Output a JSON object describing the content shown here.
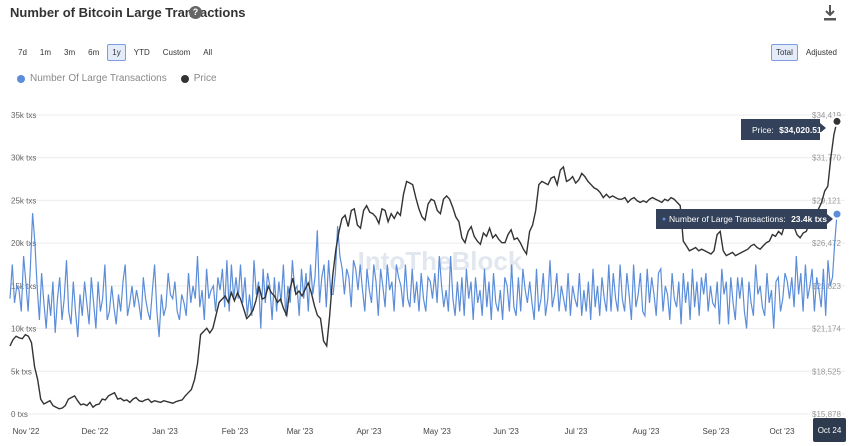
{
  "header": {
    "title": "Number of Bitcoin Large Transactions",
    "help_icon": "question-circle-icon",
    "download_icon": "download-icon"
  },
  "range_tabs": [
    {
      "label": "7d",
      "active": false
    },
    {
      "label": "1m",
      "active": false
    },
    {
      "label": "3m",
      "active": false
    },
    {
      "label": "6m",
      "active": false
    },
    {
      "label": "1y",
      "active": true
    },
    {
      "label": "YTD",
      "active": false
    },
    {
      "label": "Custom",
      "active": false
    },
    {
      "label": "All",
      "active": false
    }
  ],
  "mode_tabs": [
    {
      "label": "Total",
      "active": true
    },
    {
      "label": "Adjusted",
      "active": false
    }
  ],
  "legend": [
    {
      "label": "Number Of Large Transactions",
      "color": "#5b8dd9"
    },
    {
      "label": "Price",
      "color": "#333333"
    }
  ],
  "watermark": "IntoTheBlock",
  "tooltips": {
    "price": {
      "label": "Price:",
      "value": "$34,020.51"
    },
    "transactions": {
      "label": "Number of Large Transactions:",
      "value": "23.4k txs"
    }
  },
  "chart_data": {
    "type": "line",
    "x_ticks": [
      "Nov '22",
      "Dec '22",
      "Jan '23",
      "Feb '23",
      "Mar '23",
      "Apr '23",
      "May '23",
      "Jun '23",
      "Jul '23",
      "Aug '23",
      "Sep '23",
      "Oct '23"
    ],
    "x_end_label": "Oct 24",
    "y_left": {
      "ticks": [
        "0 txs",
        "5k txs",
        "10k txs",
        "15k txs",
        "20k txs",
        "25k txs",
        "30k txs",
        "35k txs"
      ],
      "range": [
        0,
        35000
      ]
    },
    "y_right": {
      "ticks": [
        "$15,878",
        "$18,525",
        "$21,174",
        "$23,823",
        "$26,472",
        "$29,121",
        "$31,770",
        "$34,419"
      ],
      "range": [
        15878,
        34419
      ]
    },
    "series": [
      {
        "name": "Number Of Large Transactions",
        "color": "#5b8dd9",
        "axis": "left",
        "unit": "txs",
        "values": [
          13500,
          17500,
          13000,
          15000,
          14500,
          12000,
          18500,
          15500,
          12000,
          17000,
          23500,
          20000,
          15000,
          11000,
          16500,
          13000,
          10000,
          14000,
          11500,
          15500,
          9500,
          13500,
          16000,
          11000,
          13500,
          18000,
          12000,
          10500,
          15500,
          12000,
          9000,
          14000,
          11500,
          15500,
          13000,
          10500,
          16000,
          13000,
          10000,
          15500,
          12000,
          13500,
          17500,
          11000,
          12000,
          15000,
          12500,
          10500,
          14000,
          12000,
          15500,
          17500,
          11500,
          13000,
          15000,
          12500,
          14500,
          13000,
          11000,
          16000,
          13500,
          12000,
          11000,
          14500,
          17500,
          12000,
          9000,
          14000,
          11500,
          12500,
          16500,
          14000,
          13500,
          15500,
          12000,
          11000,
          14000,
          13000,
          11500,
          16500,
          13000,
          15000,
          13500,
          18500,
          12500,
          14500,
          11000,
          17000,
          13500,
          14500,
          15000,
          12000,
          16000,
          14500,
          17000,
          12500,
          18000,
          12000,
          17500,
          13500,
          16000,
          13500,
          17500,
          13000,
          16000,
          11500,
          14000,
          11500,
          18000,
          14000,
          15500,
          10000,
          17000,
          13000,
          16500,
          15000,
          11000,
          16000,
          12000,
          15500,
          13000,
          17500,
          11500,
          15000,
          13000,
          18000,
          14500,
          15000,
          11500,
          17000,
          13500,
          16500,
          12000,
          17500,
          14000,
          16000,
          21500,
          13000,
          16000,
          17500,
          12500,
          18000,
          14000,
          14000,
          16500,
          22000,
          18500,
          17000,
          14000,
          17000,
          16000,
          12500,
          18000,
          17000,
          14500,
          17500,
          14500,
          12000,
          17000,
          14500,
          13000,
          17500,
          15500,
          11500,
          17000,
          15000,
          12500,
          17500,
          14500,
          15500,
          12000,
          17500,
          16000,
          15000,
          12500,
          17500,
          13500,
          12500,
          17000,
          13000,
          15500,
          12000,
          16500,
          13500,
          12000,
          16000,
          15500,
          13500,
          16500,
          13000,
          18500,
          15000,
          12500,
          14500,
          12000,
          18500,
          13500,
          11500,
          15500,
          12000,
          16000,
          11500,
          17000,
          13500,
          15500,
          11000,
          16000,
          13000,
          14500,
          11500,
          17000,
          12500,
          15500,
          11000,
          16500,
          13000,
          12000,
          14500,
          11000,
          16000,
          15000,
          12000,
          17500,
          12500,
          11500,
          16000,
          12000,
          17000,
          14500,
          13000,
          15500,
          13000,
          11000,
          17000,
          12000,
          13500,
          16500,
          11500,
          13500,
          18000,
          12500,
          14000,
          16500,
          12000,
          15000,
          13500,
          12000,
          16500,
          11500,
          15000,
          13500,
          12500,
          16500,
          11500,
          14500,
          12000,
          15500,
          11000,
          17000,
          12500,
          15000,
          11500,
          16000,
          13500,
          12000,
          17500,
          12000,
          16500,
          13500,
          12000,
          17500,
          13500,
          12000,
          16500,
          14000,
          11000,
          17500,
          12500,
          14000,
          16500,
          12000,
          11500,
          17000,
          13000,
          16000,
          14000,
          11500,
          16500,
          17000,
          12000,
          15000,
          14000,
          11000,
          16500,
          13500,
          12500,
          15500,
          10500,
          16500,
          13000,
          15500,
          11000,
          17000,
          12500,
          15500,
          11500,
          16000,
          14000,
          16500,
          12000,
          15000,
          13000,
          12500,
          15500,
          10500,
          17000,
          14000,
          15500,
          10500,
          16000,
          13000,
          11000,
          16000,
          13500,
          16000,
          12000,
          10000,
          15500,
          13000,
          11500,
          17500,
          14000,
          15000,
          12500,
          11500,
          16500,
          13000,
          14500,
          10000,
          15500,
          16000,
          12000,
          13500,
          16500,
          15500,
          13500,
          16000,
          12500,
          18500,
          14000,
          16500,
          12000,
          17500,
          13500,
          15000,
          17000,
          12000,
          16000,
          14500,
          12500,
          17000,
          11500,
          18000,
          15000,
          16000,
          20000,
          23400
        ]
      },
      {
        "name": "Price",
        "color": "#333333",
        "axis": "right",
        "unit": "USD",
        "values": [
          20100,
          20500,
          20700,
          20600,
          20550,
          20800,
          20700,
          20300,
          18800,
          18000,
          16800,
          16500,
          16600,
          16700,
          16400,
          16300,
          16200,
          16250,
          16400,
          16800,
          16900,
          17000,
          16700,
          16450,
          16500,
          16400,
          16600,
          16300,
          16450,
          16500,
          16800,
          16750,
          17000,
          17100,
          17200,
          16800,
          16850,
          16700,
          16750,
          16600,
          16800,
          16900,
          16700,
          16650,
          16750,
          16800,
          16600,
          16700,
          16650,
          16600,
          16700,
          16650,
          16600,
          16550,
          16650,
          16700,
          16750,
          17000,
          17200,
          17400,
          18000,
          19000,
          20800,
          21000,
          21200,
          20900,
          21200,
          22000,
          22800,
          23000,
          23200,
          22800,
          23400,
          22900,
          23400,
          23000,
          22400,
          21800,
          22000,
          22300,
          22900,
          23800,
          23000,
          23100,
          23800,
          23400,
          23200,
          22800,
          23000,
          22400,
          22000,
          23600,
          24300,
          23300,
          23500,
          23200,
          23600,
          24000,
          23400,
          22600,
          22000,
          21800,
          20400,
          20100,
          22000,
          24500,
          26100,
          27200,
          28000,
          28200,
          27500,
          28500,
          28600,
          27600,
          27400,
          28500,
          28800,
          28400,
          28300,
          28100,
          27700,
          28600,
          28500,
          27800,
          28300,
          28000,
          28400,
          28200,
          29500,
          30300,
          30200,
          30100,
          29300,
          28600,
          28100,
          27900,
          28900,
          29200,
          29100,
          28500,
          28300,
          29200,
          29400,
          29200,
          28700,
          28100,
          27800,
          26800,
          26500,
          27200,
          27500,
          26900,
          26600,
          26400,
          27100,
          26900,
          27400,
          26800,
          27000,
          26700,
          26500,
          26500,
          27000,
          27300,
          26700,
          26800,
          26500,
          26100,
          25800,
          27200,
          27600,
          28500,
          30100,
          30300,
          30200,
          30100,
          30500,
          30600,
          30100,
          31000,
          31200,
          30300,
          30400,
          30600,
          30200,
          30400,
          30800,
          30600,
          30300,
          30100,
          29900,
          29800,
          29600,
          29300,
          29500,
          29300,
          29400,
          29300,
          29200,
          29200,
          29300,
          29000,
          29200,
          29300,
          29100,
          29000,
          29100,
          29000,
          29200,
          29300,
          29200,
          29100,
          29000,
          29200,
          29100,
          29300,
          29200,
          29000,
          28800,
          26600,
          26300,
          26000,
          26100,
          26200,
          26000,
          26100,
          26000,
          25900,
          25800,
          26000,
          27000,
          27200,
          26000,
          25700,
          25800,
          25900,
          25700,
          25800,
          25900,
          26000,
          26100,
          26300,
          26400,
          26200,
          26100,
          26300,
          26500,
          26600,
          27000,
          26900,
          27200,
          27000,
          27600,
          27900,
          27600,
          27500,
          27000,
          26800,
          27100,
          27200,
          27700,
          28000,
          28300,
          28600,
          29000,
          29700,
          30000,
          31800,
          33200,
          34020.51
        ]
      }
    ]
  }
}
